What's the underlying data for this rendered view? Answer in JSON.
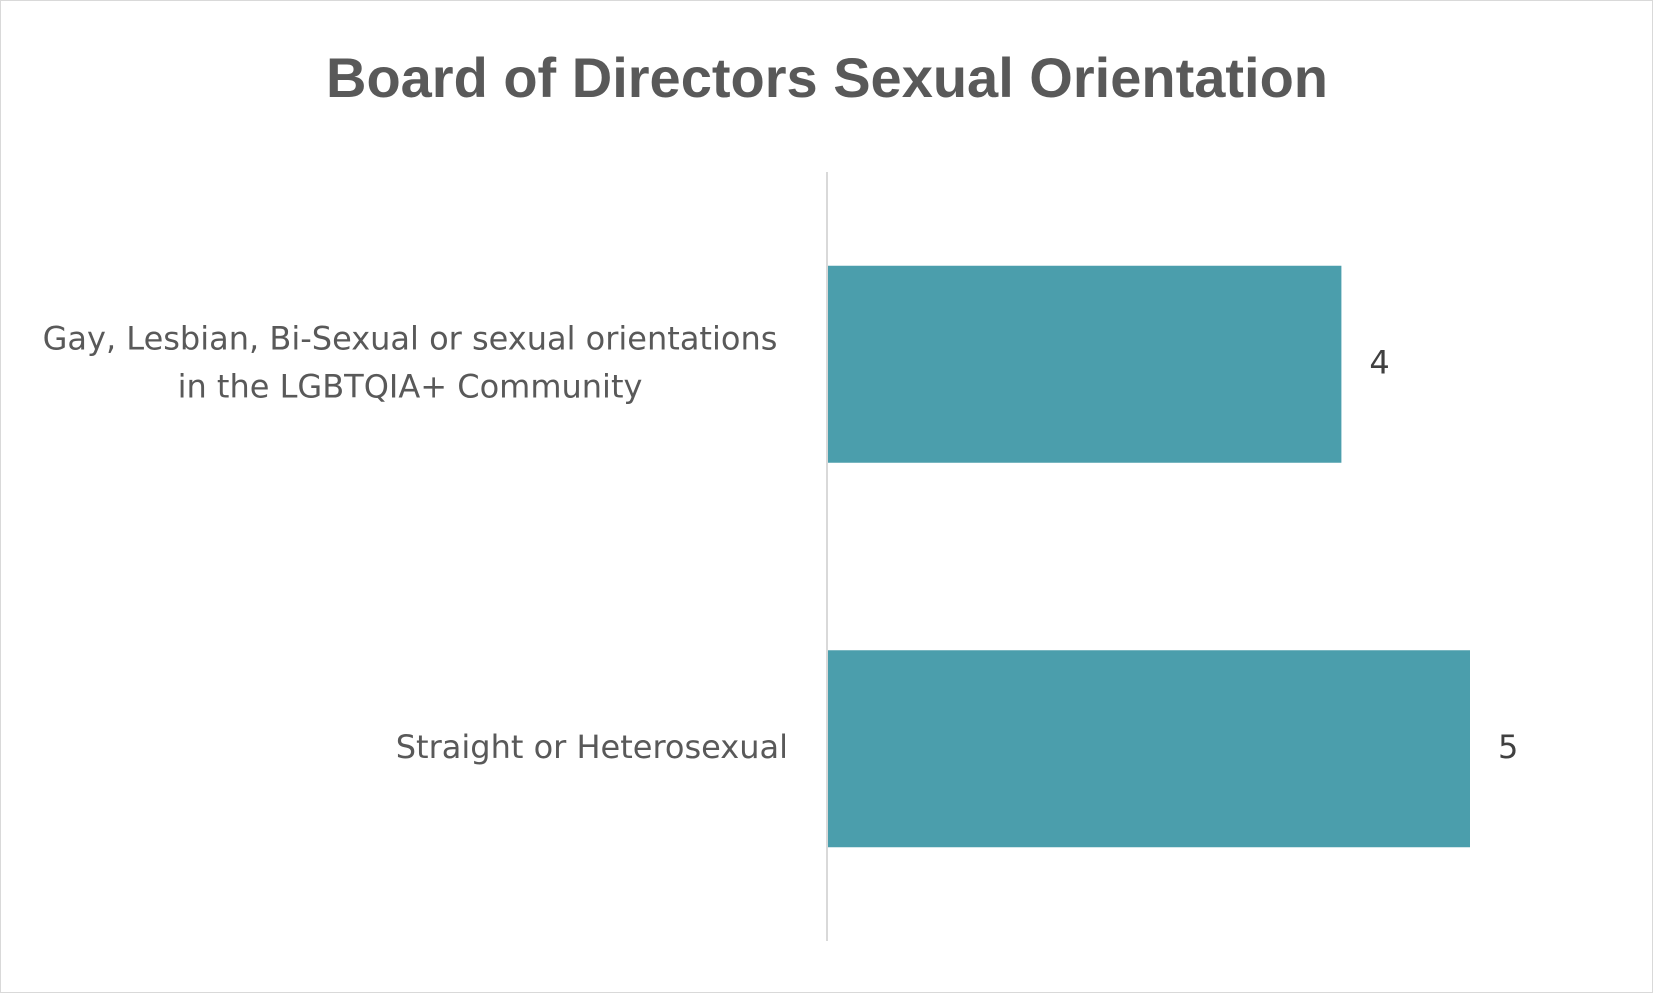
{
  "chart_data": {
    "type": "bar",
    "orientation": "horizontal",
    "title": "Board of Directors Sexual Orientation",
    "xlabel": "",
    "ylabel": "",
    "categories": [
      [
        "Gay, Lesbian, Bi-Sexual or sexual orientations",
        "in the LGBTQIA+ Community"
      ],
      [
        "Straight or Heterosexual"
      ]
    ],
    "values": [
      4,
      5
    ],
    "data_labels": [
      "4",
      "5"
    ],
    "xlim": [
      0,
      6
    ],
    "grid": false,
    "legend": "none",
    "bar_color": "#4b9eac",
    "axis_color": "#d9d9d9"
  }
}
